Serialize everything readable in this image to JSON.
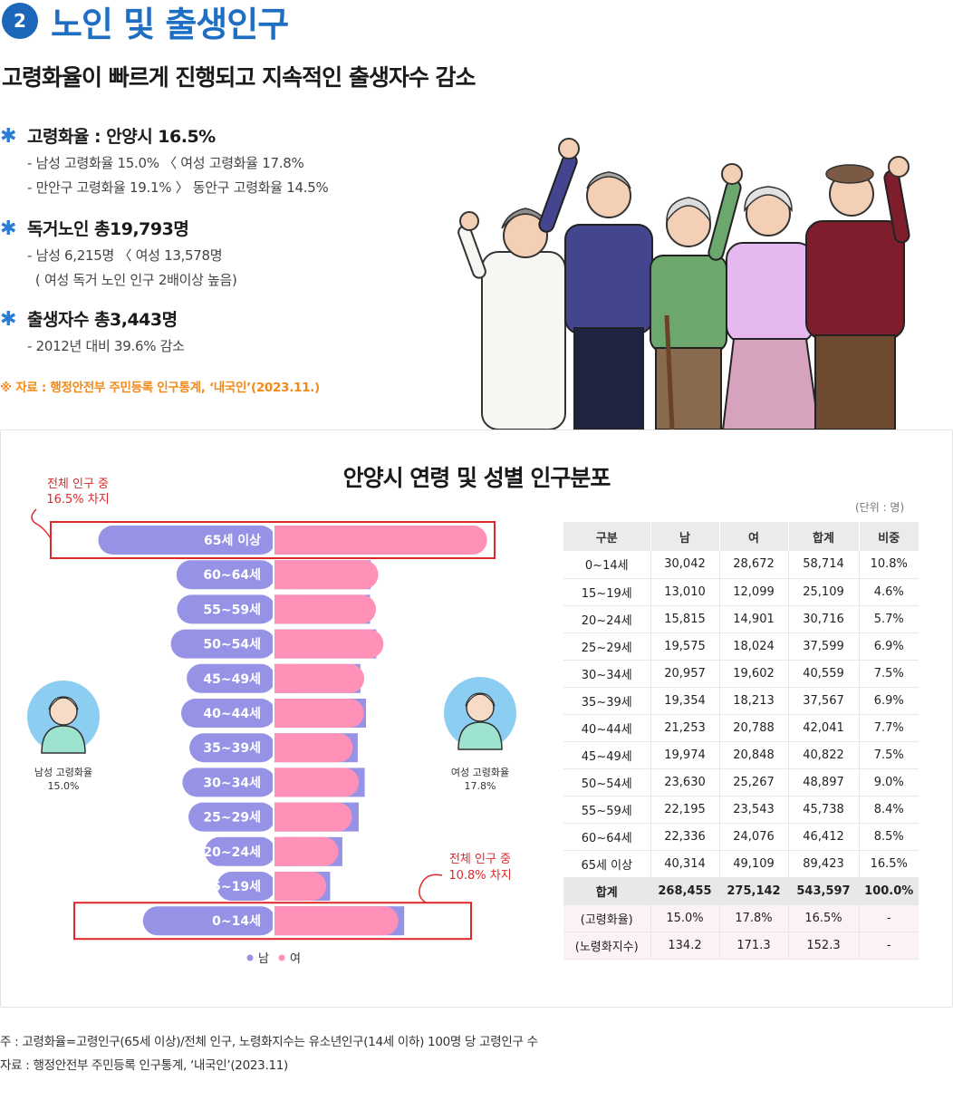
{
  "header": {
    "number": "2",
    "title": "노인 및 출생인구",
    "subtitle": "고령화율이 빠르게 진행되고 지속적인 출생자수 감소"
  },
  "bullets": [
    {
      "title": "고령화율 : 안양시 16.5%",
      "lines": [
        "- 남성 고령화율 15.0% 〈 여성 고령화율 17.8%",
        "- 만안구 고령화율 19.1% 〉 동안구 고령화율 14.5%"
      ]
    },
    {
      "title": "독거노인 총19,793명",
      "lines": [
        "- 남성 6,215명 〈 여성 13,578명",
        "  ( 여성 독거 노인 인구 2배이상 높음)"
      ]
    },
    {
      "title": "출생자수 총3,443명",
      "lines": [
        "- 2012년 대비 39.6% 감소"
      ]
    }
  ],
  "source_top": "※ 자료 : 행정안전부 주민등록 인구통계, ‘내국인’(2023.11.)",
  "colors": {
    "male": "#9693e6",
    "female": "#ff91b8",
    "accent_blue": "#1e6fc4",
    "highlight_red": "#e0272a"
  },
  "chart_data": {
    "type": "bar",
    "title": "안양시 연령 및 성별 인구분포",
    "unit": "(단위 : 명)",
    "categories": [
      "0~14세",
      "15~19세",
      "20~24세",
      "25~29세",
      "30~34세",
      "35~39세",
      "40~44세",
      "45~49세",
      "50~54세",
      "55~59세",
      "60~64세",
      "65세 이상"
    ],
    "series": [
      {
        "name": "남",
        "values": [
          30042,
          13010,
          15815,
          19575,
          20957,
          19354,
          21253,
          19974,
          23630,
          22195,
          22336,
          40314
        ]
      },
      {
        "name": "여",
        "values": [
          28672,
          12099,
          14901,
          18024,
          19602,
          18213,
          20788,
          20848,
          25267,
          23543,
          24076,
          49109
        ]
      }
    ],
    "legend": [
      "남",
      "여"
    ],
    "annotations": {
      "top": [
        "전체 인구 중",
        "16.5% 차지"
      ],
      "bottom": [
        "전체 인구 중",
        "10.8% 차지"
      ],
      "male_label": [
        "남성 고령화율",
        "15.0%"
      ],
      "female_label": [
        "여성 고령화율",
        "17.8%"
      ]
    }
  },
  "table": {
    "headers": [
      "구분",
      "남",
      "여",
      "합계",
      "비중"
    ],
    "rows": [
      [
        "0~14세",
        "30,042",
        "28,672",
        "58,714",
        "10.8%"
      ],
      [
        "15~19세",
        "13,010",
        "12,099",
        "25,109",
        "4.6%"
      ],
      [
        "20~24세",
        "15,815",
        "14,901",
        "30,716",
        "5.7%"
      ],
      [
        "25~29세",
        "19,575",
        "18,024",
        "37,599",
        "6.9%"
      ],
      [
        "30~34세",
        "20,957",
        "19,602",
        "40,559",
        "7.5%"
      ],
      [
        "35~39세",
        "19,354",
        "18,213",
        "37,567",
        "6.9%"
      ],
      [
        "40~44세",
        "21,253",
        "20,788",
        "42,041",
        "7.7%"
      ],
      [
        "45~49세",
        "19,974",
        "20,848",
        "40,822",
        "7.5%"
      ],
      [
        "50~54세",
        "23,630",
        "25,267",
        "48,897",
        "9.0%"
      ],
      [
        "55~59세",
        "22,195",
        "23,543",
        "45,738",
        "8.4%"
      ],
      [
        "60~64세",
        "22,336",
        "24,076",
        "46,412",
        "8.5%"
      ],
      [
        "65세 이상",
        "40,314",
        "49,109",
        "89,423",
        "16.5%"
      ]
    ],
    "total": [
      "합계",
      "268,455",
      "275,142",
      "543,597",
      "100.0%"
    ],
    "extra": [
      [
        "(고령화율)",
        "15.0%",
        "17.8%",
        "16.5%",
        "-"
      ],
      [
        "(노령화지수)",
        "134.2",
        "171.3",
        "152.3",
        "-"
      ]
    ]
  },
  "footnotes": [
    "주 : 고령화율=고령인구(65세 이상)/전체 인구, 노령화지수는 유소년인구(14세 이하) 100명 당 고령인구 수",
    "자료 : 행정안전부 주민등록 인구통계, ‘내국인’(2023.11)"
  ]
}
